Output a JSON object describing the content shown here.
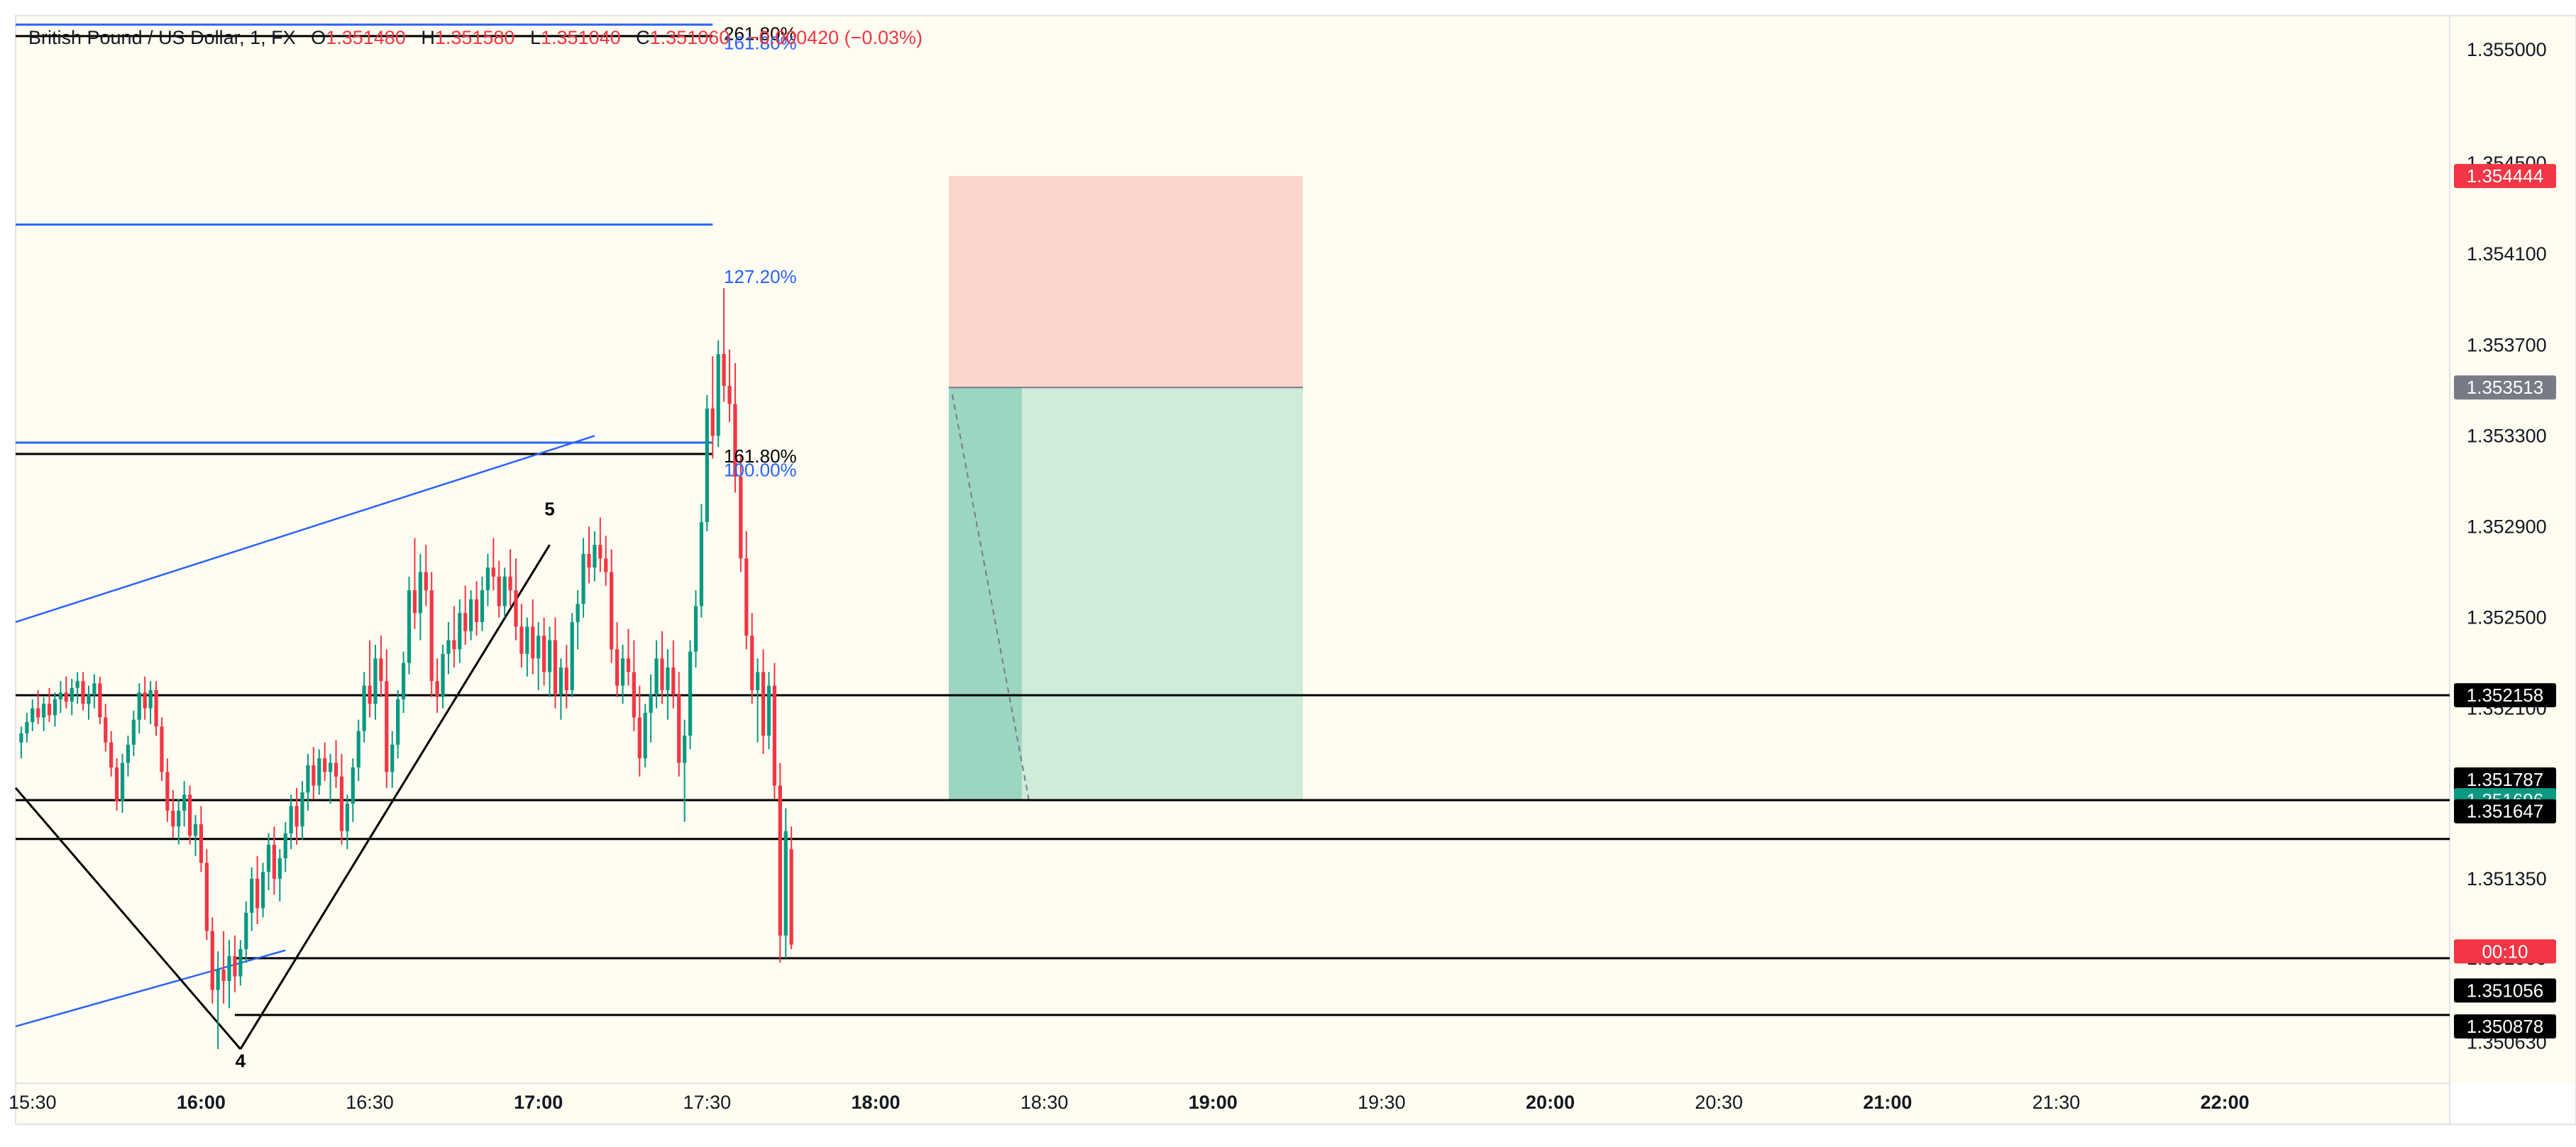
{
  "legend": {
    "symbol": "British Pound / US Dollar, 1, FX",
    "o_label": "O",
    "o_value": "1.351480",
    "h_label": "H",
    "h_value": "1.351580",
    "l_label": "L",
    "l_value": "1.351040",
    "c_label": "C",
    "c_value": "1.351060",
    "change": "−0.000420 (−0.03%)"
  },
  "colors": {
    "background": "#fffdf1",
    "up": "#089981",
    "down": "#f23645",
    "fib_blue": "#2962ff",
    "black_line": "#000000",
    "risk_zone": "#f9b6ae",
    "reward_zone": "#9fd9c2",
    "reward_zone_active": "#5dbba1",
    "axis_text": "#131722"
  },
  "time_axis": {
    "labels": [
      "15:30",
      "16:00",
      "16:30",
      "17:00",
      "17:30",
      "18:00",
      "18:30",
      "19:00",
      "19:30",
      "20:00",
      "20:30",
      "21:00",
      "21:30",
      "22:00"
    ],
    "bold": [
      "16:00",
      "17:00",
      "18:00",
      "19:00",
      "20:00",
      "21:00",
      "22:00"
    ]
  },
  "price_axis": {
    "labels": [
      "1.355000",
      "1.354500",
      "1.354100",
      "1.353700",
      "1.353300",
      "1.352900",
      "1.352500",
      "1.352100",
      "1.351350",
      "1.351000",
      "1.350630"
    ]
  },
  "price_tags": [
    {
      "text": "1.354444",
      "price": 1.354444,
      "color": "#f23645"
    },
    {
      "text": "1.353513",
      "price": 1.353513,
      "color": "#787b86"
    },
    {
      "text": "1.352158",
      "price": 1.352158,
      "color": "#000000"
    },
    {
      "text": "1.351787",
      "price": 1.351787,
      "color": "#000000"
    },
    {
      "text": "1.351696",
      "price": 1.351696,
      "color": "#089981"
    },
    {
      "text": "1.351647",
      "price": 1.351647,
      "color": "#000000"
    },
    {
      "text": "00:10",
      "price": 1.35103,
      "color": "#f23645"
    },
    {
      "text": "1.351056",
      "price": 1.350858,
      "color": "#000000"
    },
    {
      "text": "1.350878",
      "price": 1.3507,
      "color": "#000000"
    }
  ],
  "fib_labels": [
    {
      "text": "261.80%",
      "price": 1.35507,
      "color": "#000000"
    },
    {
      "text": "161.80%",
      "price": 1.35503,
      "color": "#2962ff"
    },
    {
      "text": "127.20%",
      "price": 1.354,
      "color": "#2962ff"
    },
    {
      "text": "161.80%",
      "price": 1.35321,
      "color": "#000000"
    },
    {
      "text": "100.00%",
      "price": 1.35315,
      "color": "#2962ff"
    }
  ],
  "horizontal_lines": [
    {
      "price": 1.35506,
      "from": "15:27",
      "to": "17:31",
      "color": "#000000"
    },
    {
      "price": 1.35511,
      "from": "15:27",
      "to": "17:31",
      "color": "#2962ff"
    },
    {
      "price": 1.35423,
      "from": "15:27",
      "to": "17:31",
      "color": "#2962ff"
    },
    {
      "price": 1.35327,
      "from": "15:27",
      "to": "17:31",
      "color": "#2962ff"
    },
    {
      "price": 1.35322,
      "from": "15:27",
      "to": "17:31",
      "color": "#000000"
    },
    {
      "price": 1.352158,
      "from": "15:27",
      "to": "22:40",
      "color": "#000000"
    },
    {
      "price": 1.351696,
      "from": "15:27",
      "to": "22:40",
      "color": "#000000"
    },
    {
      "price": 1.351525,
      "from": "15:27",
      "to": "22:40",
      "color": "#000000"
    },
    {
      "price": 1.351,
      "from": "16:06",
      "to": "22:40",
      "color": "#000000"
    },
    {
      "price": 1.35075,
      "from": "16:06",
      "to": "22:40",
      "color": "#000000"
    }
  ],
  "wave_labels": [
    {
      "text": "5",
      "time": "17:02",
      "price": 1.35295
    },
    {
      "text": "4",
      "time": "16:07",
      "price": 1.35052
    }
  ],
  "position_tool": {
    "start": "18:13",
    "end": "19:16",
    "stop": 1.354444,
    "entry": 1.353513,
    "target": 1.351696,
    "filled_until": "18:26"
  },
  "chart_data": {
    "type": "candlestick",
    "title": "British Pound / US Dollar, 1, FX",
    "x_range": [
      "15:27",
      "22:40"
    ],
    "y_range": [
      1.35045,
      1.35515
    ],
    "grid": false,
    "series": [
      {
        "name": "GBPUSD",
        "x_start": "15:28",
        "interval_minutes": 1,
        "candles": [
          [
            1.35195,
            1.35202,
            1.35188,
            1.35199
          ],
          [
            1.35199,
            1.35208,
            1.35195,
            1.35204
          ],
          [
            1.35204,
            1.35214,
            1.352,
            1.3521
          ],
          [
            1.3521,
            1.35218,
            1.35203,
            1.35206
          ],
          [
            1.35206,
            1.35215,
            1.352,
            1.35212
          ],
          [
            1.35212,
            1.35219,
            1.35204,
            1.35207
          ],
          [
            1.35207,
            1.35217,
            1.35202,
            1.35214
          ],
          [
            1.35214,
            1.35222,
            1.35208,
            1.35217
          ],
          [
            1.35217,
            1.35224,
            1.3521,
            1.35213
          ],
          [
            1.35213,
            1.35223,
            1.35207,
            1.35219
          ],
          [
            1.35219,
            1.35226,
            1.35212,
            1.35222
          ],
          [
            1.35222,
            1.35226,
            1.35209,
            1.35212
          ],
          [
            1.35212,
            1.3522,
            1.35205,
            1.35216
          ],
          [
            1.35216,
            1.35225,
            1.3521,
            1.35221
          ],
          [
            1.35221,
            1.35224,
            1.35203,
            1.35206
          ],
          [
            1.35206,
            1.35212,
            1.35191,
            1.35195
          ],
          [
            1.35195,
            1.352,
            1.3518,
            1.35184
          ],
          [
            1.35184,
            1.35188,
            1.35165,
            1.35169
          ],
          [
            1.35169,
            1.3519,
            1.35164,
            1.35186
          ],
          [
            1.35186,
            1.35198,
            1.3518,
            1.35194
          ],
          [
            1.35194,
            1.35209,
            1.35189,
            1.35205
          ],
          [
            1.35205,
            1.35221,
            1.35199,
            1.35217
          ],
          [
            1.35217,
            1.35224,
            1.35205,
            1.3521
          ],
          [
            1.3521,
            1.35222,
            1.35203,
            1.35218
          ],
          [
            1.35218,
            1.35222,
            1.35198,
            1.35202
          ],
          [
            1.35202,
            1.35206,
            1.35178,
            1.35182
          ],
          [
            1.35182,
            1.35188,
            1.3516,
            1.35165
          ],
          [
            1.35165,
            1.35174,
            1.35153,
            1.35158
          ],
          [
            1.35158,
            1.3517,
            1.3515,
            1.35165
          ],
          [
            1.35165,
            1.35178,
            1.35158,
            1.35172
          ],
          [
            1.35172,
            1.35176,
            1.3515,
            1.35154
          ],
          [
            1.35154,
            1.35163,
            1.35145,
            1.35159
          ],
          [
            1.35159,
            1.35167,
            1.35138,
            1.35142
          ],
          [
            1.35142,
            1.35148,
            1.35108,
            1.35112
          ],
          [
            1.35112,
            1.35118,
            1.3508,
            1.35086
          ],
          [
            1.35086,
            1.35103,
            1.3506,
            1.35095
          ],
          [
            1.35095,
            1.35112,
            1.3508,
            1.3509
          ],
          [
            1.3509,
            1.35108,
            1.35078,
            1.35101
          ],
          [
            1.35101,
            1.3511,
            1.35085,
            1.35092
          ],
          [
            1.35092,
            1.35108,
            1.35088,
            1.35104
          ],
          [
            1.35104,
            1.35125,
            1.35098,
            1.3512
          ],
          [
            1.3512,
            1.3514,
            1.35112,
            1.35135
          ],
          [
            1.35135,
            1.35145,
            1.35115,
            1.35122
          ],
          [
            1.35122,
            1.35142,
            1.35118,
            1.35138
          ],
          [
            1.35138,
            1.35155,
            1.3513,
            1.3515
          ],
          [
            1.3515,
            1.35158,
            1.35128,
            1.35135
          ],
          [
            1.35135,
            1.35148,
            1.35125,
            1.35144
          ],
          [
            1.35144,
            1.3516,
            1.35138,
            1.35155
          ],
          [
            1.35155,
            1.35172,
            1.35148,
            1.35167
          ],
          [
            1.35167,
            1.35175,
            1.3515,
            1.35158
          ],
          [
            1.35158,
            1.35178,
            1.35152,
            1.35173
          ],
          [
            1.35173,
            1.3519,
            1.35165,
            1.35185
          ],
          [
            1.35185,
            1.35193,
            1.3517,
            1.35176
          ],
          [
            1.35176,
            1.35192,
            1.35172,
            1.35188
          ],
          [
            1.35188,
            1.35195,
            1.35178,
            1.35182
          ],
          [
            1.35182,
            1.3519,
            1.35168,
            1.35186
          ],
          [
            1.35186,
            1.35196,
            1.35175,
            1.3518
          ],
          [
            1.3518,
            1.3519,
            1.3515,
            1.35156
          ],
          [
            1.35156,
            1.35172,
            1.35148,
            1.35168
          ],
          [
            1.35168,
            1.35188,
            1.3516,
            1.35184
          ],
          [
            1.35184,
            1.35205,
            1.35178,
            1.352
          ],
          [
            1.352,
            1.35226,
            1.35195,
            1.3522
          ],
          [
            1.3522,
            1.3524,
            1.35206,
            1.35212
          ],
          [
            1.35212,
            1.35238,
            1.35205,
            1.35232
          ],
          [
            1.35232,
            1.35242,
            1.35215,
            1.35222
          ],
          [
            1.35222,
            1.35236,
            1.35175,
            1.35182
          ],
          [
            1.35182,
            1.352,
            1.35175,
            1.35194
          ],
          [
            1.35194,
            1.35218,
            1.35188,
            1.35214
          ],
          [
            1.35214,
            1.35235,
            1.35208,
            1.3523
          ],
          [
            1.3523,
            1.35268,
            1.35225,
            1.35262
          ],
          [
            1.35262,
            1.35285,
            1.35245,
            1.35252
          ],
          [
            1.35252,
            1.35278,
            1.3524,
            1.3527
          ],
          [
            1.3527,
            1.35282,
            1.35255,
            1.35262
          ],
          [
            1.35262,
            1.3527,
            1.35215,
            1.35222
          ],
          [
            1.35222,
            1.35232,
            1.35208,
            1.35215
          ],
          [
            1.35215,
            1.35238,
            1.3521,
            1.35234
          ],
          [
            1.35234,
            1.35248,
            1.35225,
            1.3524
          ],
          [
            1.3524,
            1.35255,
            1.35228,
            1.35236
          ],
          [
            1.35236,
            1.35258,
            1.3523,
            1.35252
          ],
          [
            1.35252,
            1.35264,
            1.35238,
            1.35244
          ],
          [
            1.35244,
            1.35262,
            1.3524,
            1.35258
          ],
          [
            1.35258,
            1.35266,
            1.35242,
            1.35248
          ],
          [
            1.35248,
            1.35268,
            1.35244,
            1.35262
          ],
          [
            1.35262,
            1.35278,
            1.35255,
            1.35272
          ],
          [
            1.35272,
            1.35285,
            1.35262,
            1.35268
          ],
          [
            1.35268,
            1.35275,
            1.3525,
            1.35255
          ],
          [
            1.35255,
            1.35272,
            1.3525,
            1.35268
          ],
          [
            1.35268,
            1.3528,
            1.35255,
            1.35262
          ],
          [
            1.35262,
            1.35276,
            1.3524,
            1.35246
          ],
          [
            1.35246,
            1.35256,
            1.35228,
            1.35234
          ],
          [
            1.35234,
            1.3525,
            1.35224,
            1.35246
          ],
          [
            1.35246,
            1.35258,
            1.35225,
            1.35232
          ],
          [
            1.35232,
            1.35248,
            1.35218,
            1.35242
          ],
          [
            1.35242,
            1.3525,
            1.3522,
            1.35226
          ],
          [
            1.35226,
            1.35246,
            1.35215,
            1.3524
          ],
          [
            1.3524,
            1.3525,
            1.3521,
            1.35216
          ],
          [
            1.35216,
            1.35232,
            1.35205,
            1.35228
          ],
          [
            1.35228,
            1.35238,
            1.3521,
            1.35218
          ],
          [
            1.35218,
            1.35252,
            1.35215,
            1.35248
          ],
          [
            1.35248,
            1.35262,
            1.35236,
            1.35256
          ],
          [
            1.35256,
            1.35285,
            1.3525,
            1.35278
          ],
          [
            1.35278,
            1.3529,
            1.35265,
            1.35272
          ],
          [
            1.35272,
            1.35288,
            1.35266,
            1.35282
          ],
          [
            1.35282,
            1.35294,
            1.3527,
            1.35276
          ],
          [
            1.35276,
            1.35286,
            1.35264,
            1.3527
          ],
          [
            1.3527,
            1.3528,
            1.3523,
            1.35236
          ],
          [
            1.35236,
            1.35248,
            1.35215,
            1.3522
          ],
          [
            1.3522,
            1.35238,
            1.35212,
            1.35232
          ],
          [
            1.35232,
            1.35245,
            1.3522,
            1.35226
          ],
          [
            1.35226,
            1.3524,
            1.352,
            1.35206
          ],
          [
            1.35206,
            1.3522,
            1.3518,
            1.35188
          ],
          [
            1.35188,
            1.35212,
            1.35184,
            1.35208
          ],
          [
            1.35208,
            1.35225,
            1.35195,
            1.35216
          ],
          [
            1.35216,
            1.3524,
            1.3521,
            1.35232
          ],
          [
            1.35232,
            1.35244,
            1.35212,
            1.35218
          ],
          [
            1.35218,
            1.35236,
            1.35205,
            1.35228
          ],
          [
            1.35228,
            1.3524,
            1.3521,
            1.35216
          ],
          [
            1.35216,
            1.35226,
            1.3518,
            1.35186
          ],
          [
            1.35186,
            1.35205,
            1.3516,
            1.35198
          ],
          [
            1.35198,
            1.3524,
            1.35192,
            1.35235
          ],
          [
            1.35235,
            1.35262,
            1.35228,
            1.35255
          ],
          [
            1.35255,
            1.353,
            1.3525,
            1.35292
          ],
          [
            1.35292,
            1.35348,
            1.35288,
            1.35342
          ],
          [
            1.35342,
            1.35365,
            1.3532,
            1.3533
          ],
          [
            1.3533,
            1.35372,
            1.35325,
            1.35366
          ],
          [
            1.35366,
            1.35395,
            1.35345,
            1.35352
          ],
          [
            1.35352,
            1.35368,
            1.35336,
            1.35344
          ],
          [
            1.35344,
            1.35362,
            1.35305,
            1.35312
          ],
          [
            1.35312,
            1.35322,
            1.3527,
            1.35276
          ],
          [
            1.35276,
            1.35288,
            1.35236,
            1.35242
          ],
          [
            1.35242,
            1.35252,
            1.35212,
            1.35218
          ],
          [
            1.35218,
            1.35232,
            1.35195,
            1.35226
          ],
          [
            1.35226,
            1.35236,
            1.3519,
            1.35198
          ],
          [
            1.35198,
            1.35226,
            1.35192,
            1.3522
          ],
          [
            1.3522,
            1.3523,
            1.3517,
            1.35176
          ],
          [
            1.35176,
            1.35186,
            1.35098,
            1.3511
          ],
          [
            1.3511,
            1.35166,
            1.351,
            1.35156
          ],
          [
            1.35148,
            1.35158,
            1.35104,
            1.35106
          ]
        ]
      }
    ]
  }
}
